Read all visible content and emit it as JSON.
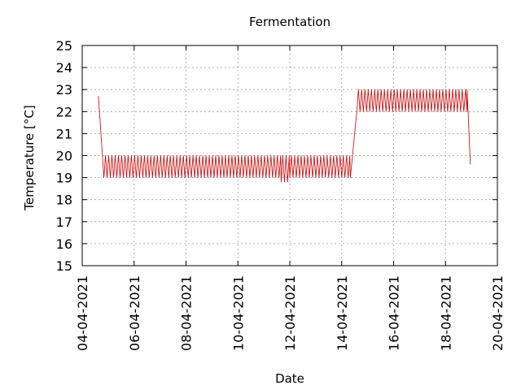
{
  "chart_data": {
    "type": "line",
    "title": "Fermentation",
    "xlabel": "Date",
    "ylabel": "Temperature [°C]",
    "xlim": [
      "04-04-2021",
      "20-04-2021"
    ],
    "ylim": [
      15,
      25
    ],
    "grid": true,
    "x_ticks": [
      "04-04-2021",
      "06-04-2021",
      "08-04-2021",
      "10-04-2021",
      "12-04-2021",
      "14-04-2021",
      "16-04-2021",
      "18-04-2021",
      "20-04-2021"
    ],
    "y_ticks": [
      "15",
      "16",
      "17",
      "18",
      "19",
      "20",
      "21",
      "22",
      "23",
      "24",
      "25"
    ],
    "series": [
      {
        "color": "#cc0000",
        "oscillation": "thermostat cycling between band limits, about 8 cycles per day",
        "segments": [
          {
            "x": [
              "04-04-2021 15:00",
              "04-04-2021 20:00"
            ],
            "y": [
              22.7,
              19.0
            ]
          },
          {
            "x": [
              "04-04-2021 20:00",
              "11-04-2021 16:00"
            ],
            "band": [
              19.0,
              20.0
            ]
          },
          {
            "x": [
              "11-04-2021 16:00",
              "12-04-2021 00:00"
            ],
            "band": [
              18.8,
              20.0
            ]
          },
          {
            "x": [
              "12-04-2021 00:00",
              "14-04-2021 08:00"
            ],
            "band": [
              19.0,
              20.0
            ]
          },
          {
            "x": [
              "14-04-2021 08:00",
              "14-04-2021 14:00"
            ],
            "y": [
              19.0,
              22.0
            ]
          },
          {
            "x": [
              "14-04-2021 14:00",
              "18-04-2021 20:00"
            ],
            "band": [
              22.0,
              23.0
            ]
          },
          {
            "x": [
              "18-04-2021 20:00",
              "18-04-2021 23:00"
            ],
            "y": [
              23.0,
              19.6
            ]
          }
        ]
      }
    ]
  }
}
